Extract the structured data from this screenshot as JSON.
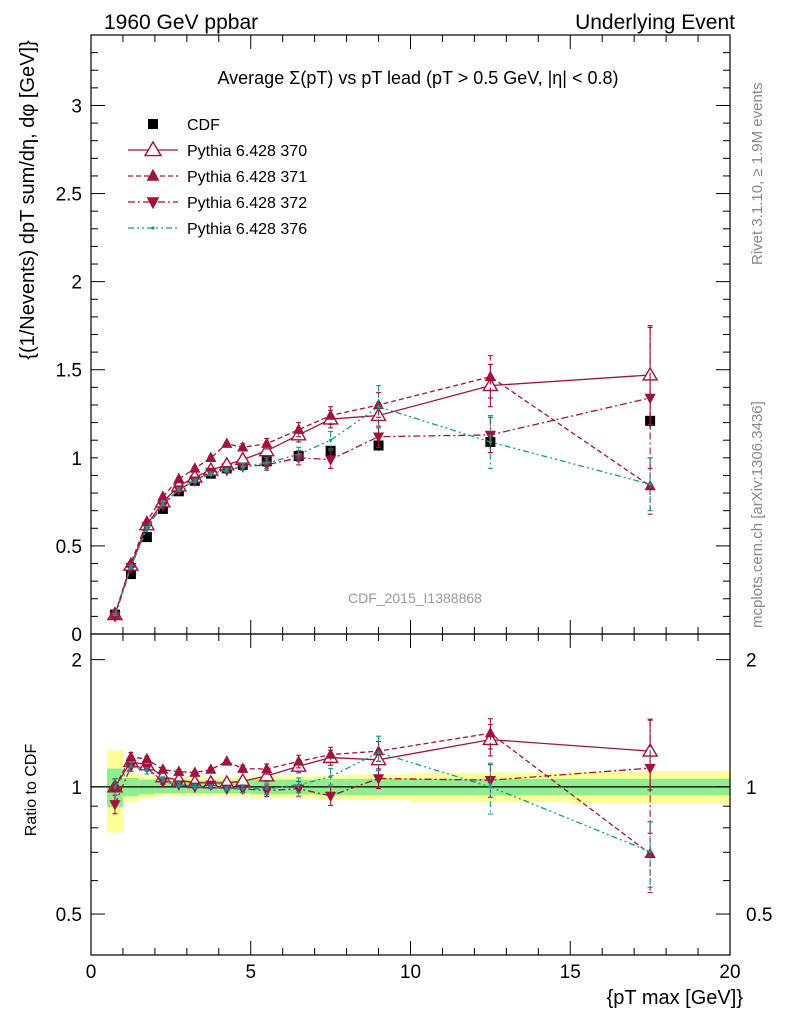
{
  "header": {
    "left": "1960 GeV ppbar",
    "right": "Underlying Event"
  },
  "side_labels": {
    "rivet": "Rivet 3.1.10, ≥ 1.9M events",
    "mcplots": "mcplots.cern.ch [arXiv:1306.3436]"
  },
  "watermark": "CDF_2015_I1388868",
  "chart_data": {
    "type": "scatter",
    "title": "Average Σ(pT) vs pT lead (pT > 0.5 GeV, |η| < 0.8)",
    "xlabel": "{pT max [GeV]}",
    "ylabel": "{(1/Nevents) dpT sum/dη, dφ [GeV]}",
    "ratio_ylabel": "Ratio to CDF",
    "xlim": [
      0,
      20
    ],
    "ylim": [
      0,
      3.4
    ],
    "ratio_ylim": [
      0.4,
      2.3
    ],
    "ratio_scale": "log",
    "x_ticks": [
      "0",
      "5",
      "10",
      "15",
      "20"
    ],
    "y_ticks": [
      "0",
      "0.5",
      "1",
      "1.5",
      "2",
      "2.5",
      "3"
    ],
    "ratio_ticks": [
      "0.5",
      "1",
      "2"
    ],
    "legend_position": "top-left",
    "bins": [
      [
        0.5,
        1.0
      ],
      [
        1.0,
        1.5
      ],
      [
        1.5,
        2.0
      ],
      [
        2.0,
        2.5
      ],
      [
        2.5,
        3.0
      ],
      [
        3.0,
        3.5
      ],
      [
        3.5,
        4.0
      ],
      [
        4.0,
        4.5
      ],
      [
        4.5,
        5.0
      ],
      [
        5.0,
        6.0
      ],
      [
        6.0,
        7.0
      ],
      [
        7.0,
        8.0
      ],
      [
        8.0,
        10.0
      ],
      [
        10.0,
        15.0
      ],
      [
        15.0,
        20.0
      ]
    ],
    "band_inner": [
      0.105,
      0.05,
      0.04,
      0.035,
      0.035,
      0.035,
      0.035,
      0.035,
      0.035,
      0.04,
      0.04,
      0.045,
      0.045,
      0.045,
      0.045
    ],
    "band_outer": [
      0.22,
      0.08,
      0.06,
      0.05,
      0.05,
      0.05,
      0.05,
      0.05,
      0.05,
      0.06,
      0.06,
      0.065,
      0.07,
      0.08,
      0.09
    ],
    "series": [
      {
        "name": "CDF",
        "marker": "square-filled",
        "color": "#000000",
        "x": [
          0.75,
          1.25,
          1.75,
          2.25,
          2.75,
          3.25,
          3.75,
          4.25,
          4.75,
          5.5,
          6.5,
          7.5,
          9.0,
          12.5,
          17.5
        ],
        "y": [
          0.11,
          0.34,
          0.55,
          0.71,
          0.81,
          0.87,
          0.91,
          0.94,
          0.96,
          0.98,
          1.01,
          1.04,
          1.07,
          1.09,
          1.21
        ],
        "yerr": [
          0.01,
          0.02,
          0.02,
          0.02,
          0.02,
          0.02,
          0.02,
          0.02,
          0.02,
          0.02,
          0.02,
          0.02,
          0.03,
          0.04,
          0.05
        ]
      },
      {
        "name": "Pythia 6.428 370",
        "marker": "triangle-up-open",
        "line": "solid",
        "color": "#a0143c",
        "x": [
          0.75,
          1.25,
          1.75,
          2.25,
          2.75,
          3.25,
          3.75,
          4.25,
          4.75,
          5.5,
          6.5,
          7.5,
          9.0,
          12.5,
          17.5
        ],
        "y": [
          0.11,
          0.39,
          0.62,
          0.75,
          0.84,
          0.89,
          0.93,
          0.96,
          0.99,
          1.04,
          1.13,
          1.22,
          1.24,
          1.41,
          1.47
        ],
        "yerr": [
          0.005,
          0.01,
          0.01,
          0.01,
          0.01,
          0.01,
          0.01,
          0.01,
          0.02,
          0.03,
          0.04,
          0.05,
          0.07,
          0.12,
          0.28
        ]
      },
      {
        "name": "Pythia 6.428 371",
        "marker": "triangle-up-filled",
        "line": "dashed",
        "color": "#a0143c",
        "x": [
          0.75,
          1.25,
          1.75,
          2.25,
          2.75,
          3.25,
          3.75,
          4.25,
          4.75,
          5.5,
          6.5,
          7.5,
          9.0,
          12.5,
          17.5
        ],
        "y": [
          0.11,
          0.4,
          0.64,
          0.78,
          0.88,
          0.94,
          1.0,
          1.08,
          1.06,
          1.08,
          1.16,
          1.24,
          1.3,
          1.46,
          0.84
        ],
        "yerr": [
          0.005,
          0.01,
          0.01,
          0.01,
          0.01,
          0.01,
          0.01,
          0.01,
          0.02,
          0.03,
          0.04,
          0.05,
          0.07,
          0.12,
          0.16
        ]
      },
      {
        "name": "Pythia 6.428 372",
        "marker": "triangle-down-filled",
        "line": "dashdot",
        "color": "#a0143c",
        "x": [
          0.75,
          1.25,
          1.75,
          2.25,
          2.75,
          3.25,
          3.75,
          4.25,
          4.75,
          5.5,
          6.5,
          7.5,
          9.0,
          12.5,
          17.5
        ],
        "y": [
          0.1,
          0.38,
          0.61,
          0.73,
          0.82,
          0.87,
          0.92,
          0.93,
          0.95,
          0.96,
          1.0,
          0.99,
          1.12,
          1.13,
          1.34
        ],
        "yerr": [
          0.005,
          0.01,
          0.01,
          0.01,
          0.01,
          0.01,
          0.01,
          0.01,
          0.02,
          0.03,
          0.04,
          0.05,
          0.06,
          0.1,
          0.4
        ]
      },
      {
        "name": "Pythia 6.428 376",
        "marker": "point",
        "line": "dashdotdot",
        "color": "#139a8e",
        "x": [
          0.75,
          1.25,
          1.75,
          2.25,
          2.75,
          3.25,
          3.75,
          4.25,
          4.75,
          5.5,
          6.5,
          7.5,
          9.0,
          12.5,
          17.5
        ],
        "y": [
          0.11,
          0.38,
          0.6,
          0.74,
          0.82,
          0.87,
          0.91,
          0.93,
          0.95,
          0.97,
          1.02,
          1.1,
          1.29,
          1.09,
          0.85
        ],
        "yerr": [
          0.005,
          0.01,
          0.01,
          0.01,
          0.01,
          0.01,
          0.01,
          0.01,
          0.02,
          0.03,
          0.04,
          0.05,
          0.12,
          0.15,
          0.15
        ]
      }
    ]
  }
}
